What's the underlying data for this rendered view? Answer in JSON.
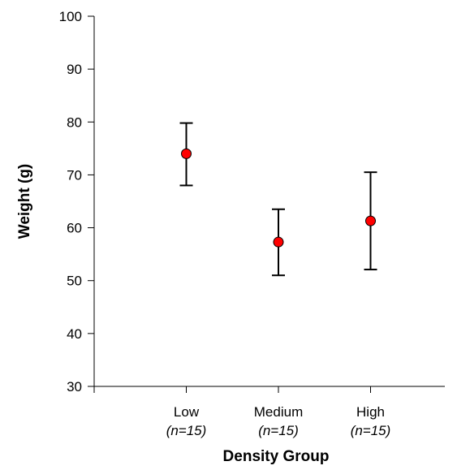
{
  "chart_data": {
    "type": "scatter",
    "title": "",
    "xlabel": "Density Group",
    "ylabel": "Weight (g)",
    "ylim": [
      30,
      100
    ],
    "yticks": [
      30,
      40,
      50,
      60,
      70,
      80,
      90,
      100
    ],
    "categories": [
      "Low",
      "Medium",
      "High"
    ],
    "sample_sizes": [
      "(n=15)",
      "(n=15)",
      "(n=15)"
    ],
    "series": [
      {
        "values": [
          74,
          57.3,
          61.3
        ],
        "error_low": [
          68,
          51,
          52.1
        ],
        "error_high": [
          79.8,
          63.5,
          70.5
        ]
      }
    ],
    "grid": false,
    "legend": "none",
    "marker_color": "#ff0000",
    "marker_edge_color": "#000000"
  }
}
